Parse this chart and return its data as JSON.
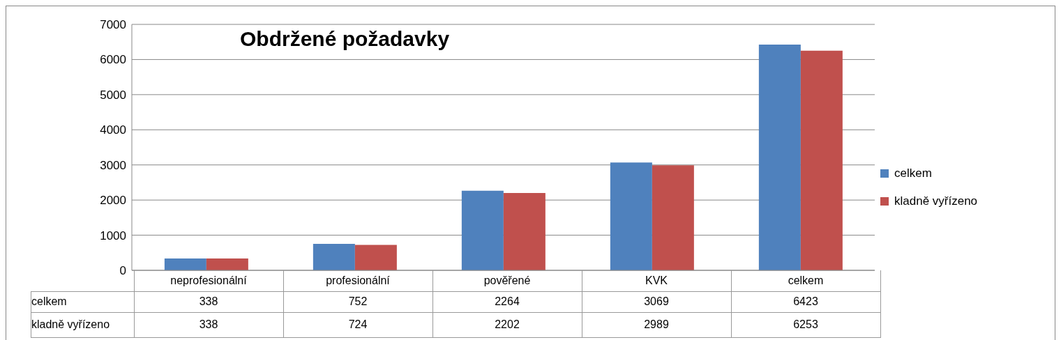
{
  "chart_data": {
    "type": "bar",
    "title": "Obdržené požadavky",
    "categories": [
      "neprofesionální",
      "profesionální",
      "pověřené",
      "KVK",
      "celkem"
    ],
    "series": [
      {
        "name": "celkem",
        "color": "#4f81bd",
        "values": [
          338,
          752,
          2264,
          3069,
          6423
        ]
      },
      {
        "name": "kladně vyřízeno",
        "color": "#c0504d",
        "values": [
          338,
          724,
          2202,
          2989,
          6253
        ]
      }
    ],
    "ylim": [
      0,
      7000
    ],
    "yticks": [
      0,
      1000,
      2000,
      3000,
      4000,
      5000,
      6000,
      7000
    ],
    "grid": "y",
    "legend": "right",
    "data_labels": true
  }
}
